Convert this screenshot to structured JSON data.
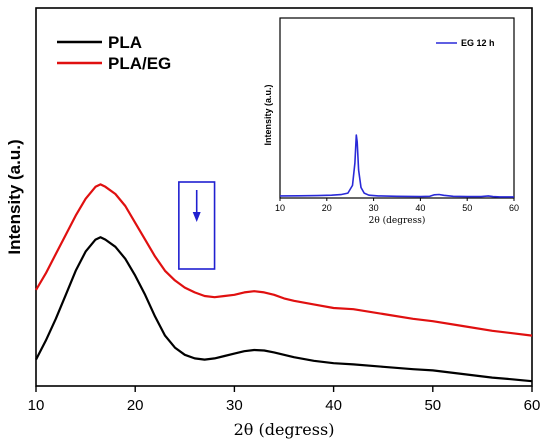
{
  "chart_data": [
    {
      "type": "line",
      "xlabel": "2θ (degress)",
      "ylabel": "Intensity (a.u.)",
      "xlim": [
        10,
        60
      ],
      "xticks": [
        "10",
        "20",
        "30",
        "40",
        "50",
        "60"
      ],
      "y_ticks_shown": false,
      "legend_position": "top-left",
      "series": [
        {
          "name": "PLA",
          "color": "#000000",
          "x": [
            10,
            11,
            12,
            13,
            14,
            15,
            16,
            16.5,
            17,
            18,
            19,
            20,
            21,
            22,
            23,
            24,
            25,
            26,
            27,
            28,
            29,
            30,
            31,
            32,
            33,
            34,
            35,
            36,
            38,
            40,
            42,
            45,
            48,
            50,
            53,
            56,
            58,
            60
          ],
          "y": [
            0.11,
            0.19,
            0.28,
            0.38,
            0.48,
            0.56,
            0.61,
            0.62,
            0.61,
            0.58,
            0.53,
            0.46,
            0.38,
            0.29,
            0.21,
            0.16,
            0.13,
            0.115,
            0.11,
            0.115,
            0.125,
            0.135,
            0.145,
            0.15,
            0.148,
            0.14,
            0.13,
            0.12,
            0.105,
            0.095,
            0.09,
            0.08,
            0.07,
            0.065,
            0.05,
            0.035,
            0.028,
            0.02
          ]
        },
        {
          "name": "PLA/EG",
          "color": "#e01010",
          "x": [
            10,
            11,
            12,
            13,
            14,
            15,
            16,
            16.5,
            17,
            18,
            19,
            20,
            21,
            22,
            23,
            24,
            25,
            26,
            27,
            28,
            29,
            30,
            31,
            32,
            33,
            34,
            35,
            36,
            38,
            40,
            42,
            45,
            48,
            50,
            53,
            56,
            58,
            60
          ],
          "y": [
            0.4,
            0.47,
            0.55,
            0.63,
            0.71,
            0.78,
            0.83,
            0.84,
            0.83,
            0.8,
            0.75,
            0.68,
            0.61,
            0.54,
            0.48,
            0.44,
            0.41,
            0.39,
            0.375,
            0.37,
            0.375,
            0.38,
            0.39,
            0.395,
            0.39,
            0.38,
            0.365,
            0.355,
            0.34,
            0.325,
            0.32,
            0.3,
            0.28,
            0.27,
            0.25,
            0.23,
            0.22,
            0.21
          ]
        }
      ]
    },
    {
      "type": "line",
      "xlabel": "2θ (degress)",
      "ylabel": "Intensity (a.u.)",
      "xlim": [
        10,
        60
      ],
      "xticks": [
        "10",
        "20",
        "30",
        "40",
        "50",
        "60"
      ],
      "y_ticks_shown": false,
      "legend_position": "top-right",
      "series": [
        {
          "name": "EG 12 h",
          "color": "#2a2ad8",
          "x": [
            10,
            14,
            18,
            21,
            23,
            24.5,
            25.5,
            26,
            26.3,
            26.5,
            26.8,
            27.3,
            28,
            29,
            31,
            35,
            40,
            42,
            43,
            44,
            45,
            47,
            50,
            53,
            54.5,
            55.5,
            57,
            60
          ],
          "y": [
            0.03,
            0.032,
            0.035,
            0.04,
            0.048,
            0.07,
            0.18,
            0.5,
            0.9,
            0.8,
            0.4,
            0.15,
            0.07,
            0.04,
            0.03,
            0.025,
            0.02,
            0.025,
            0.045,
            0.05,
            0.038,
            0.025,
            0.02,
            0.02,
            0.03,
            0.02,
            0.015,
            0.015
          ]
        }
      ]
    }
  ],
  "annotations": {
    "highlight_box_color": "#2020d0",
    "arrow_color": "#2020d0",
    "highlight_x_range": [
      24.4,
      28.0
    ]
  }
}
